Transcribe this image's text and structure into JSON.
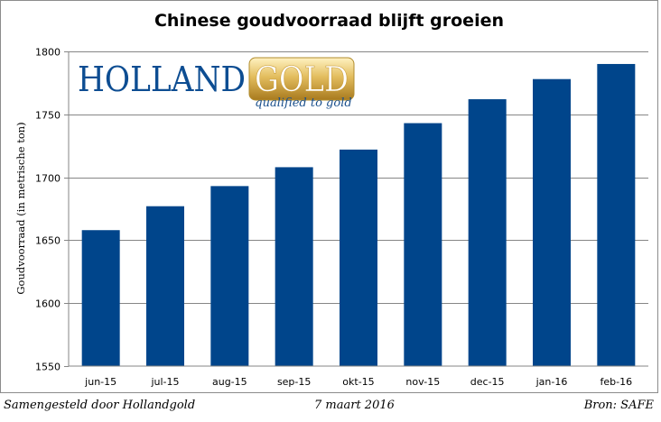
{
  "chart_data": {
    "type": "bar",
    "title": "Chinese goudvoorraad blijft groeien",
    "xlabel": "",
    "ylabel": "Goudvoorraad (in metrische ton)",
    "categories": [
      "jun-15",
      "jul-15",
      "aug-15",
      "sep-15",
      "okt-15",
      "nov-15",
      "dec-15",
      "jan-16",
      "feb-16"
    ],
    "values": [
      1658,
      1677,
      1693,
      1708,
      1722,
      1743,
      1762,
      1778,
      1790
    ],
    "ylim": [
      1550,
      1800
    ],
    "yticks": [
      1550,
      1600,
      1650,
      1700,
      1750,
      1800
    ],
    "bar_color": "#00458b",
    "grid": true
  },
  "logo": {
    "holland": "HOLLAND",
    "gold": "GOLD",
    "tagline": "qualified to gold"
  },
  "footer": {
    "left": "Samengesteld door Hollandgold",
    "center": "7 maart 2016",
    "right": "Bron: SAFE"
  }
}
